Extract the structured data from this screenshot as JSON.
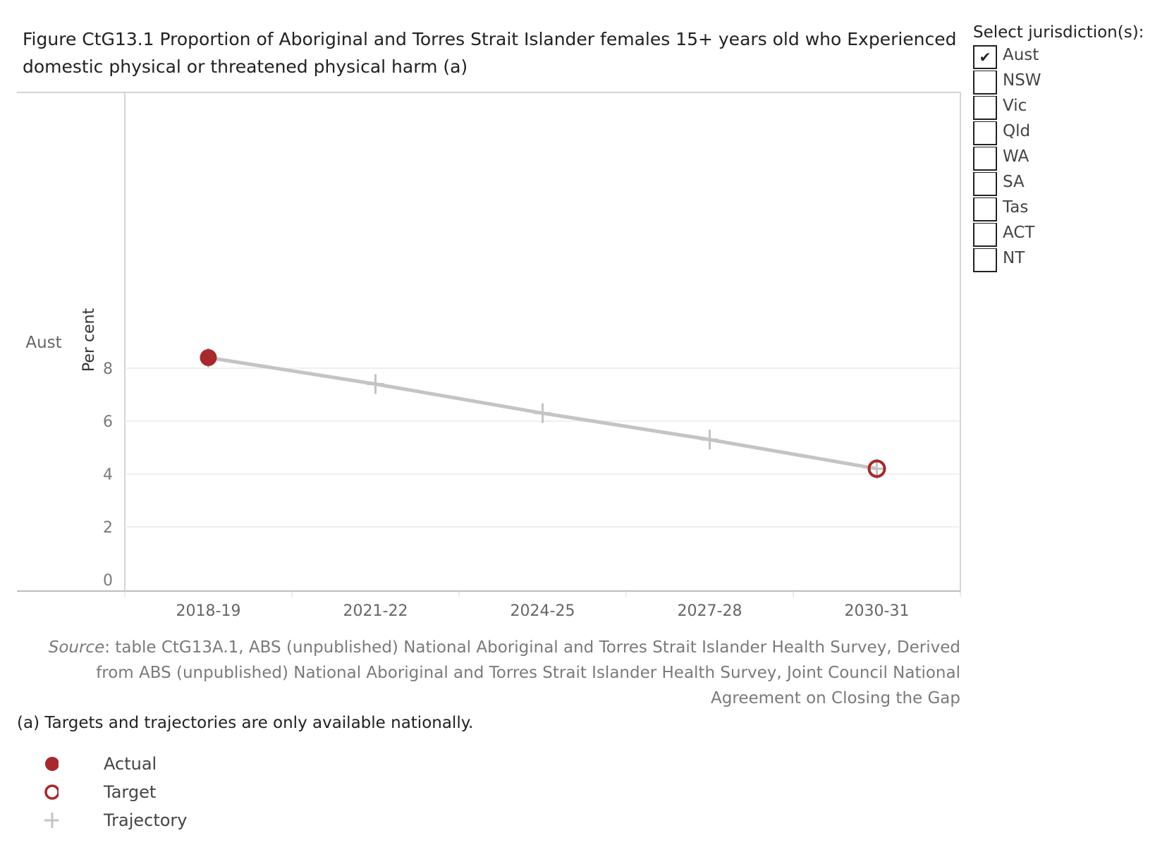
{
  "figure": {
    "title": "Figure CtG13.1 Proportion of Aboriginal and Torres Strait Islander females 15+ years old who Experienced domestic physical or threatened physical harm (a)"
  },
  "chart_data": {
    "type": "line",
    "row_label": "Aust",
    "ylabel": "Per cent",
    "xlabel": "",
    "categories": [
      "2018-19",
      "2021-22",
      "2024-25",
      "2027-28",
      "2030-31"
    ],
    "ylim": [
      0,
      8.8
    ],
    "yticks": [
      0,
      2,
      4,
      6,
      8
    ],
    "grid": true,
    "series": [
      {
        "name": "Trajectory",
        "values": [
          8.4,
          7.4,
          6.3,
          5.3,
          4.2
        ],
        "color": "#c4c4c4"
      },
      {
        "name": "Actual",
        "values": [
          8.4,
          null,
          null,
          null,
          null
        ],
        "color": "#a8282b"
      },
      {
        "name": "Target",
        "values": [
          null,
          null,
          null,
          null,
          4.2
        ],
        "color": "#a8282b"
      }
    ]
  },
  "source": {
    "label": "Source",
    "text": ": table CtG13A.1, ABS (unpublished) National Aboriginal and Torres Strait Islander Health Survey, Derived from ABS (unpublished) National Aboriginal and Torres Strait Islander Health Survey, Joint Council National Agreement on Closing the Gap"
  },
  "footnote": "(a) Targets and trajectories are only available nationally.",
  "legend": [
    {
      "label": "Actual",
      "icon": "filled-circle-icon"
    },
    {
      "label": "Target",
      "icon": "open-circle-icon"
    },
    {
      "label": "Trajectory",
      "icon": "plus-icon"
    }
  ],
  "filter": {
    "title": "Select jurisdiction(s):",
    "options": [
      {
        "label": "Aust",
        "checked": true
      },
      {
        "label": "NSW",
        "checked": false
      },
      {
        "label": "Vic",
        "checked": false
      },
      {
        "label": "Qld",
        "checked": false
      },
      {
        "label": "WA",
        "checked": false
      },
      {
        "label": "SA",
        "checked": false
      },
      {
        "label": "Tas",
        "checked": false
      },
      {
        "label": "ACT",
        "checked": false
      },
      {
        "label": "NT",
        "checked": false
      }
    ]
  },
  "colors": {
    "actual": "#a8282b",
    "trajectory": "#c4c4c4",
    "grid": "#ececec",
    "axis": "#cccccc"
  }
}
